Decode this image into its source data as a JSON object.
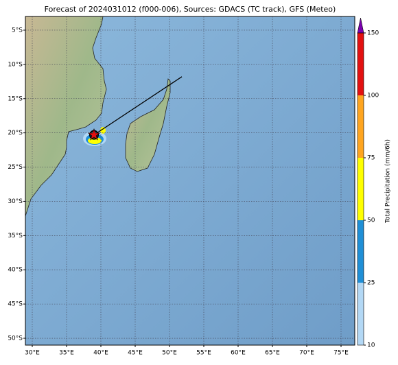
{
  "map": {
    "title": "Forecast of 2024031012 (f000-006), Sources: GDACS (TC track), GFS (Meteo)",
    "lonlim": [
      29,
      77
    ],
    "latlim": [
      -51,
      -3
    ],
    "lon_ticks": [
      {
        "value": 30,
        "label": "30°E"
      },
      {
        "value": 35,
        "label": "35°E"
      },
      {
        "value": 40,
        "label": "40°E"
      },
      {
        "value": 45,
        "label": "45°E"
      },
      {
        "value": 50,
        "label": "50°E"
      },
      {
        "value": 55,
        "label": "55°E"
      },
      {
        "value": 60,
        "label": "60°E"
      },
      {
        "value": 65,
        "label": "65°E"
      },
      {
        "value": 70,
        "label": "70°E"
      },
      {
        "value": 75,
        "label": "75°E"
      }
    ],
    "lat_ticks": [
      {
        "value": -5,
        "label": "5°S"
      },
      {
        "value": -10,
        "label": "10°S"
      },
      {
        "value": -15,
        "label": "15°S"
      },
      {
        "value": -20,
        "label": "20°S"
      },
      {
        "value": -25,
        "label": "25°S"
      },
      {
        "value": -30,
        "label": "30°S"
      },
      {
        "value": -35,
        "label": "35°S"
      },
      {
        "value": -40,
        "label": "40°S"
      },
      {
        "value": -45,
        "label": "45°S"
      },
      {
        "value": -50,
        "label": "50°S"
      }
    ],
    "grid": true,
    "track": {
      "lon": [
        39,
        51.8
      ],
      "lat": [
        -20.3,
        -11.8
      ],
      "color": "#000000"
    },
    "colorbar": {
      "label": "Total Precipitation (mm/6h)",
      "ticks": [
        10,
        25,
        50,
        75,
        100,
        150
      ],
      "colors": [
        "#b3d8f5",
        "#1f8fd6",
        "#ffff00",
        "#ffa51f",
        "#e31010"
      ],
      "over_color": "#7b00b0"
    }
  }
}
